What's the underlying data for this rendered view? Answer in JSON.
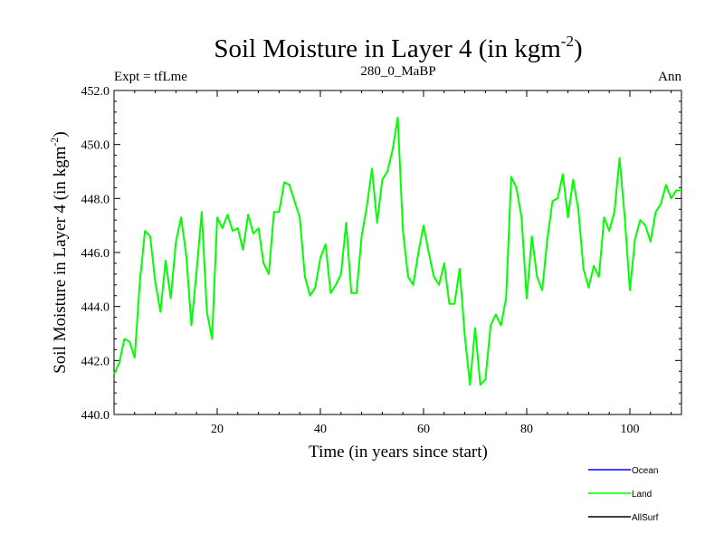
{
  "chart_data": {
    "type": "line",
    "title": "Soil Moisture in Layer 4 (in kgm",
    "title_exponent": "-2",
    "title_close": ")",
    "subtitle_left": "Expt = tfLme",
    "subtitle_center": "280_0_MaBP",
    "subtitle_right": "Ann",
    "xlabel": "Time (in years since start)",
    "ylabel": "Soil Moisture in Layer 4 (in kgm",
    "ylabel_exponent": "-2",
    "ylabel_close": ")",
    "xlim": [
      0,
      110
    ],
    "ylim": [
      440.0,
      452.0
    ],
    "x_ticks": [
      20,
      40,
      60,
      80,
      100
    ],
    "x_tick_labels": [
      "20",
      "40",
      "60",
      "80",
      "100"
    ],
    "y_ticks": [
      440,
      442,
      444,
      446,
      448,
      450,
      452
    ],
    "y_tick_labels": [
      "440.0",
      "442.0",
      "444.0",
      "446.0",
      "448.0",
      "450.0",
      "452.0"
    ],
    "legend": [
      {
        "name": "Ocean",
        "color": "#0000ff"
      },
      {
        "name": "Land",
        "color": "#00ff00"
      },
      {
        "name": "AllSurf",
        "color": "#000000"
      }
    ],
    "series": [
      {
        "name": "Land",
        "color": "#00ff00",
        "x": [
          0,
          1,
          2,
          3,
          4,
          5,
          6,
          7,
          8,
          9,
          10,
          11,
          12,
          13,
          14,
          15,
          16,
          17,
          18,
          19,
          20,
          21,
          22,
          23,
          24,
          25,
          26,
          27,
          28,
          29,
          30,
          31,
          32,
          33,
          34,
          35,
          36,
          37,
          38,
          39,
          40,
          41,
          42,
          43,
          44,
          45,
          46,
          47,
          48,
          49,
          50,
          51,
          52,
          53,
          54,
          55,
          56,
          57,
          58,
          59,
          60,
          61,
          62,
          63,
          64,
          65,
          66,
          67,
          68,
          69,
          70,
          71,
          72,
          73,
          74,
          75,
          76,
          77,
          78,
          79,
          80,
          81,
          82,
          83,
          84,
          85,
          86,
          87,
          88,
          89,
          90,
          91,
          92,
          93,
          94,
          95,
          96,
          97,
          98,
          99,
          100,
          101,
          102,
          103,
          104,
          105,
          106,
          107,
          108,
          109,
          110
        ],
        "values": [
          441.5,
          441.9,
          442.8,
          442.7,
          442.1,
          444.9,
          446.8,
          446.6,
          444.9,
          443.8,
          445.7,
          444.3,
          446.4,
          447.3,
          445.9,
          443.3,
          445.3,
          447.5,
          443.8,
          442.8,
          447.3,
          446.9,
          447.4,
          446.8,
          446.9,
          446.1,
          447.4,
          446.7,
          446.9,
          445.6,
          445.2,
          447.5,
          447.5,
          448.6,
          448.5,
          447.9,
          447.3,
          445.1,
          444.4,
          444.7,
          445.8,
          446.3,
          444.5,
          444.8,
          445.2,
          447.1,
          444.5,
          444.5,
          446.6,
          447.7,
          449.1,
          447.1,
          448.7,
          449.0,
          449.8,
          451.0,
          446.8,
          445.1,
          444.8,
          446.0,
          447.0,
          446.0,
          445.1,
          444.8,
          445.6,
          444.1,
          444.1,
          445.4,
          442.9,
          441.1,
          443.2,
          441.1,
          441.3,
          443.3,
          443.7,
          443.3,
          444.3,
          448.8,
          448.4,
          447.3,
          444.3,
          446.6,
          445.1,
          444.6,
          446.5,
          447.9,
          448.0,
          448.9,
          447.3,
          448.7,
          447.6,
          445.4,
          444.7,
          445.5,
          445.1,
          447.3,
          446.8,
          447.5,
          449.5,
          447.3,
          444.6,
          446.5,
          447.2,
          447.0,
          446.4,
          447.5,
          447.8,
          448.5,
          448.0,
          448.3,
          448.3
        ]
      }
    ]
  }
}
